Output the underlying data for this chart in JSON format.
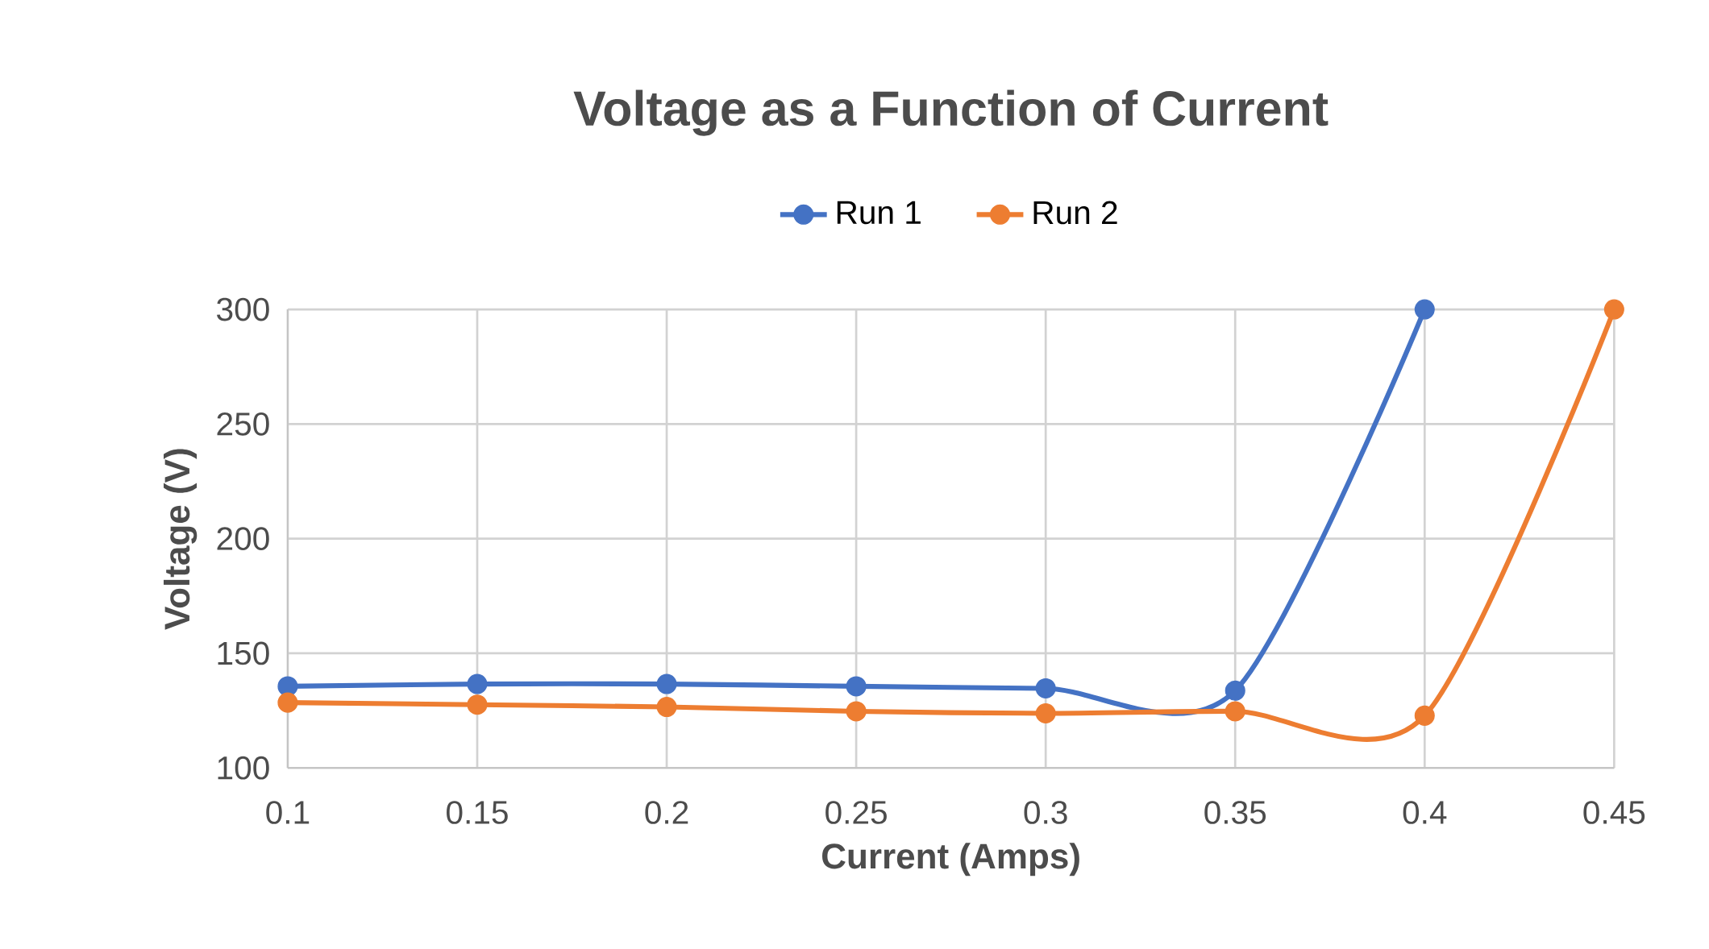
{
  "chart_data": {
    "type": "line",
    "title": "Voltage as a Function of Current",
    "xlabel": "Current (Amps)",
    "ylabel": "Voltage (V)",
    "x": [
      0.1,
      0.15,
      0.2,
      0.25,
      0.3,
      0.35,
      0.4,
      0.45
    ],
    "series": [
      {
        "name": "Run 1",
        "color": "#4472c4",
        "values": [
          135.6,
          136.6,
          136.6,
          135.6,
          134.7,
          133.7,
          300,
          null
        ]
      },
      {
        "name": "Run 2",
        "color": "#ed7d31",
        "values": [
          128.5,
          127.6,
          126.6,
          124.7,
          123.8,
          124.7,
          122.8,
          300
        ]
      }
    ],
    "xlim": [
      0.1,
      0.45
    ],
    "xticks": [
      0.1,
      0.15,
      0.2,
      0.25,
      0.3,
      0.35,
      0.4,
      0.45
    ],
    "ylim": [
      100,
      300
    ],
    "yticks": [
      100,
      150,
      200,
      250,
      300
    ],
    "grid": true,
    "legend": "top",
    "marker": "circle",
    "line_style": "solid"
  }
}
